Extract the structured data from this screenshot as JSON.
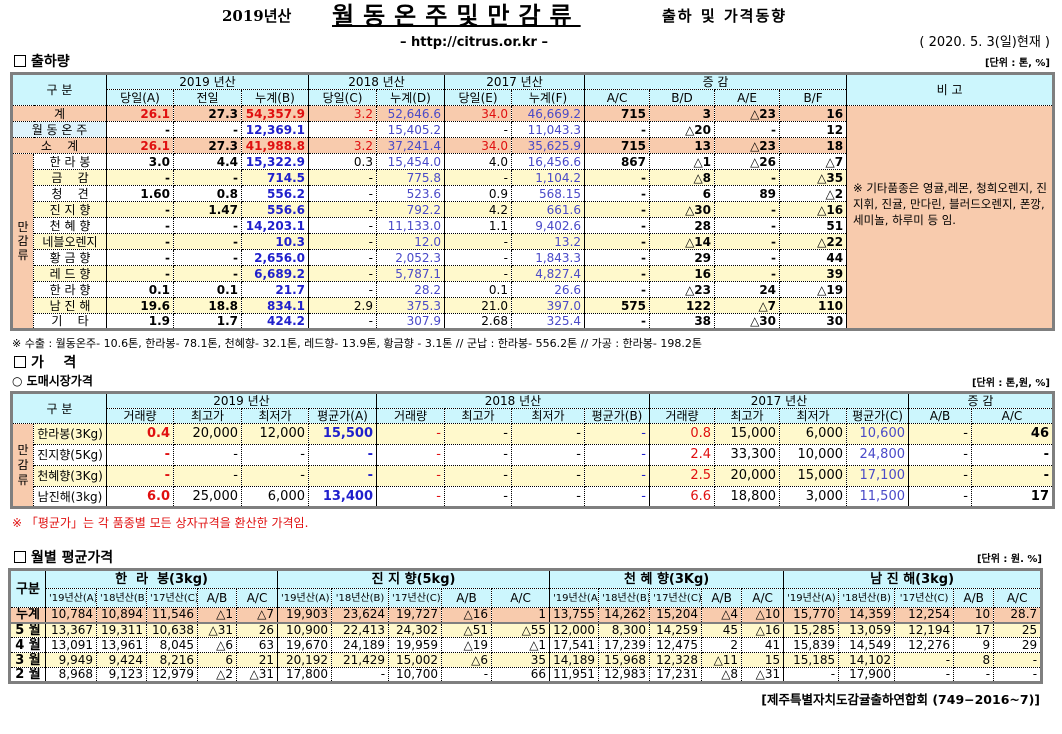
{
  "header": {
    "year_prefix": "2019년산",
    "main_title": "월동온주및만감류",
    "subtitle": "출하 및 가격동향",
    "url": "– http://citrus.or.kr –",
    "date": "( 2020. 5. 3(일)현재 )"
  },
  "shipment": {
    "section_title": "출하량",
    "unit": "[단위 : 톤, %]",
    "division": "구    분",
    "years": [
      "2019 년산",
      "2018 년산",
      "2017 년산"
    ],
    "change": "증    감",
    "remarks_header": "비 고",
    "columns": [
      "당일(A)",
      "전일",
      "누계(B)",
      "당일(C)",
      "누계(D)",
      "당일(E)",
      "누계(F)",
      "A/C",
      "B/D",
      "A/E",
      "B/F"
    ],
    "group_label": [
      "만",
      "감",
      "류"
    ],
    "remark": "※ 기타품종은 영귤,레몬, 청희오렌지, 진지휘, 진귤, 만다린, 블러드오렌지, 폰깡,세미놀, 하루미 등 임.",
    "rows": [
      {
        "label": "계",
        "type": "total",
        "values": [
          "26.1",
          "27.3",
          "54,357.9",
          "3.2",
          "52,646.6",
          "34.0",
          "46,669.2",
          "715",
          "3",
          "△23",
          "16"
        ]
      },
      {
        "label": "월 동 온 주",
        "type": "winter",
        "values": [
          "-",
          "-",
          "12,369.1",
          "-",
          "15,405.2",
          "-",
          "11,043.3",
          "-",
          "△20",
          "-",
          "12"
        ]
      },
      {
        "label": "소    계",
        "type": "total",
        "values": [
          "26.1",
          "27.3",
          "41,988.8",
          "3.2",
          "37,241.4",
          "34.0",
          "35,625.9",
          "715",
          "13",
          "△23",
          "18"
        ]
      },
      {
        "label": "한 라 봉",
        "type": "white",
        "values": [
          "3.0",
          "4.4",
          "15,322.9",
          "0.3",
          "15,454.0",
          "4.0",
          "16,456.6",
          "867",
          "△1",
          "△26",
          "△7"
        ]
      },
      {
        "label": "금    감",
        "type": "yellow",
        "values": [
          "-",
          "-",
          "714.5",
          "-",
          "775.8",
          "-",
          "1,104.2",
          "-",
          "△8",
          "-",
          "△35"
        ]
      },
      {
        "label": "청    견",
        "type": "white",
        "values": [
          "1.60",
          "0.8",
          "556.2",
          "-",
          "523.6",
          "0.9",
          "568.15",
          "-",
          "6",
          "89",
          "△2"
        ]
      },
      {
        "label": "진 지 향",
        "type": "yellow",
        "values": [
          "-",
          "1.47",
          "556.6",
          "-",
          "792.2",
          "4.2",
          "661.6",
          "-",
          "△30",
          "-",
          "△16"
        ]
      },
      {
        "label": "천 혜 향",
        "type": "white",
        "values": [
          "-",
          "-",
          "14,203.1",
          "-",
          "11,133.0",
          "1.1",
          "9,402.6",
          "-",
          "28",
          "-",
          "51"
        ]
      },
      {
        "label": "네블오렌지",
        "type": "yellow",
        "values": [
          "-",
          "-",
          "10.3",
          "-",
          "12.0",
          "-",
          "13.2",
          "-",
          "△14",
          "-",
          "△22"
        ]
      },
      {
        "label": "황 금 향",
        "type": "white",
        "values": [
          "-",
          "-",
          "2,656.0",
          "-",
          "2,052.3",
          "-",
          "1,843.3",
          "-",
          "29",
          "-",
          "44"
        ]
      },
      {
        "label": "레 드 향",
        "type": "yellow",
        "values": [
          "-",
          "-",
          "6,689.2",
          "-",
          "5,787.1",
          "-",
          "4,827.4",
          "-",
          "16",
          "-",
          "39"
        ]
      },
      {
        "label": "한 라 향",
        "type": "white",
        "values": [
          "0.1",
          "0.1",
          "21.7",
          "-",
          "28.2",
          "0.1",
          "26.6",
          "-",
          "△23",
          "24",
          "△19"
        ]
      },
      {
        "label": "남 진 해",
        "type": "yellow",
        "values": [
          "19.6",
          "18.8",
          "834.1",
          "2.9",
          "375.3",
          "21.0",
          "397.0",
          "575",
          "122",
          "△7",
          "110"
        ]
      },
      {
        "label": "기    타",
        "type": "white",
        "values": [
          "1.9",
          "1.7",
          "424.2",
          "-",
          "307.9",
          "2.68",
          "325.4",
          "-",
          "38",
          "△30",
          "30"
        ]
      }
    ],
    "footnote": "※ 수출 : 월동온주- 10.6톤, 한라봉- 78.1톤, 천혜향- 32.1톤, 레드향- 13.9톤, 황금향 - 3.1톤  //  군납 : 한라봉- 556.2톤  //  가공 : 한라봉- 198.2톤"
  },
  "price": {
    "section_title": "가    격",
    "subsection_title": "○ 도매시장가격",
    "unit": "[단위 : 톤,원, %]",
    "division": "구    분",
    "years": [
      "2019 년산",
      "2018 년산",
      "2017 년산"
    ],
    "change": "증    감",
    "columns": [
      "거래량",
      "최고가",
      "최저가",
      "평균가(A)",
      "거래량",
      "최고가",
      "최저가",
      "평균가(B)",
      "거래량",
      "최고가",
      "최저가",
      "평균가(C)",
      "A/B",
      "A/C"
    ],
    "group_label": [
      "만",
      "감",
      "류"
    ],
    "rows": [
      {
        "label": "한라봉(3Kg)",
        "type": "yellow",
        "values": [
          "0.4",
          "20,000",
          "12,000",
          "15,500",
          "-",
          "-",
          "-",
          "-",
          "0.8",
          "15,000",
          "6,000",
          "10,600",
          "-",
          "46"
        ]
      },
      {
        "label": "진지향(5Kg)",
        "type": "white",
        "values": [
          "-",
          "-",
          "-",
          "-",
          "-",
          "-",
          "-",
          "-",
          "2.4",
          "33,300",
          "10,000",
          "24,800",
          "-",
          "-"
        ]
      },
      {
        "label": "천혜향(3Kg)",
        "type": "yellow",
        "values": [
          "-",
          "-",
          "-",
          "-",
          "-",
          "-",
          "-",
          "-",
          "2.5",
          "20,000",
          "15,000",
          "17,100",
          "-",
          "-"
        ]
      },
      {
        "label": "남진해(3kg)",
        "type": "white",
        "values": [
          "6.0",
          "25,000",
          "6,000",
          "13,400",
          "-",
          "-",
          "-",
          "-",
          "6.6",
          "18,800",
          "3,000",
          "11,500",
          "-",
          "17"
        ]
      }
    ],
    "note": "※  「평균가」는 각 품종별 모든 상자규격을 환산한 가격임."
  },
  "monthly": {
    "section_title": "월별 평균가격",
    "unit": "[단위 : 원. %]",
    "division": "구분",
    "groups": [
      "한  라  봉(3kg)",
      "진 지 향(5kg)",
      "천 혜 향(3Kg)",
      "남 진 해(3kg)"
    ],
    "subcolumns": [
      "'19년산(A)",
      "'18년산(B)",
      "'17년산(C)",
      "A/B",
      "A/C"
    ],
    "rows": [
      {
        "label": "누계",
        "type": "total",
        "values": [
          "10,784",
          "10,894",
          "11,546",
          "△1",
          "△7",
          "19,903",
          "23,624",
          "19,727",
          "△16",
          "1",
          "13,755",
          "14,262",
          "15,204",
          "△4",
          "△10",
          "15,770",
          "14,359",
          "12,254",
          "10",
          "28.7"
        ]
      },
      {
        "label": "5 월",
        "type": "yellow",
        "values": [
          "13,367",
          "19,311",
          "10,638",
          "△31",
          "26",
          "10,900",
          "22,413",
          "24,302",
          "△51",
          "△55",
          "12,000",
          "8,300",
          "14,259",
          "45",
          "△16",
          "15,285",
          "13,059",
          "12,194",
          "17",
          "25"
        ]
      },
      {
        "label": "4 월",
        "type": "white",
        "values": [
          "13,091",
          "13,961",
          "8,045",
          "△6",
          "63",
          "19,670",
          "24,189",
          "19,959",
          "△19",
          "△1",
          "17,541",
          "17,239",
          "12,475",
          "2",
          "41",
          "15,839",
          "14,549",
          "12,276",
          "9",
          "29"
        ]
      },
      {
        "label": "3 월",
        "type": "yellow",
        "values": [
          "9,949",
          "9,424",
          "8,216",
          "6",
          "21",
          "20,192",
          "21,429",
          "15,002",
          "△6",
          "35",
          "14,189",
          "15,968",
          "12,328",
          "△11",
          "15",
          "15,185",
          "14,102",
          "-",
          "8",
          "-"
        ]
      },
      {
        "label": "2 월",
        "type": "white",
        "values": [
          "8,968",
          "9,123",
          "12,979",
          "△2",
          "△31",
          "17,800",
          "-",
          "10,700",
          "-",
          "66",
          "11,951",
          "12,983",
          "17,231",
          "△8",
          "△31",
          "-",
          "17,900",
          "-",
          "-",
          "-"
        ]
      }
    ],
    "source": "[제주특별자치도감귤출하연합회 (749−2016~7)]"
  }
}
